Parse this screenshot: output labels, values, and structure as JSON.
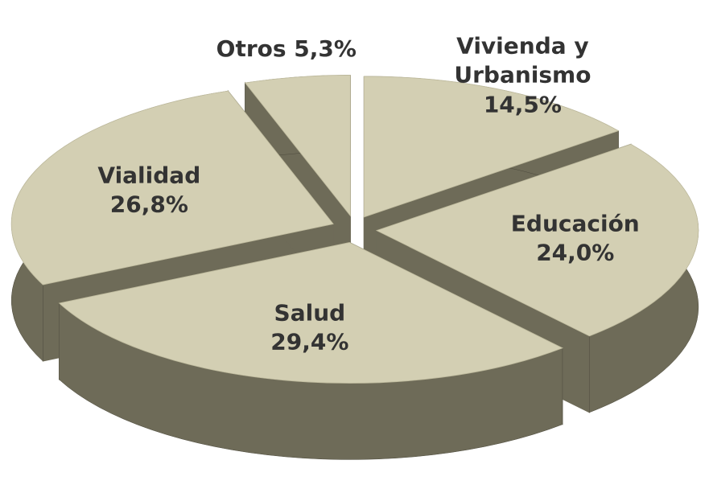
{
  "chart_data": {
    "type": "pie",
    "categories": [
      "Vivienda y Urbanismo",
      "Educación",
      "Salud",
      "Vialidad",
      "Otros"
    ],
    "values": [
      14.5,
      24.0,
      29.4,
      26.8,
      5.3
    ],
    "value_labels": [
      "14,5%",
      "24,0%",
      "29,4%",
      "26,8%",
      "5,3%"
    ],
    "color": "#d3cfb3",
    "side_color": "#6e6b58"
  }
}
